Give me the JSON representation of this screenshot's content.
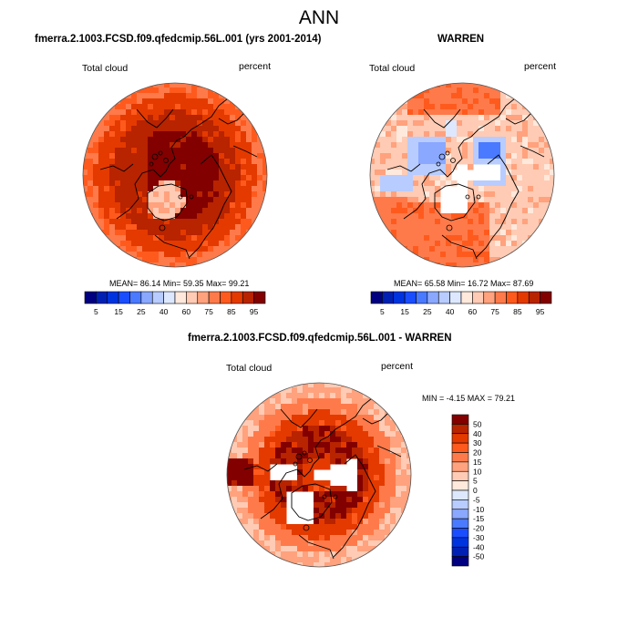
{
  "title": "ANN",
  "colors": {
    "abs_levels": [
      "#000080",
      "#0020b4",
      "#0033e0",
      "#1a4dff",
      "#4a7aff",
      "#8aa8ff",
      "#b8ccff",
      "#dde8ff",
      "#ffe9dc",
      "#ffcbb4",
      "#ffa27d",
      "#ff7a4a",
      "#ff5a1e",
      "#e43a00",
      "#b82300",
      "#820000"
    ],
    "diff_levels": [
      "#820000",
      "#b82300",
      "#e43a00",
      "#ff5a1e",
      "#ff7a4a",
      "#ffa27d",
      "#ffcbb4",
      "#ffe9dc",
      "#dde8ff",
      "#b8ccff",
      "#8aa8ff",
      "#4a7aff",
      "#1a4dff",
      "#0033e0",
      "#0020b4",
      "#000080"
    ],
    "missing": "#ffffff",
    "coast": "#000000"
  },
  "panels": [
    {
      "id": "model",
      "title": "fmerra.2.1003.FCSD.f09.qfedcmip.56L.001 (yrs 2001-2014)",
      "variable": "Total cloud",
      "units": "percent",
      "stats": "MEAN=  86.14  Min=  59.35  Max=  99.21",
      "mean": 86.14,
      "min": 59.35,
      "max": 99.21
    },
    {
      "id": "obs",
      "title": "WARREN",
      "variable": "Total cloud",
      "units": "percent",
      "stats": "MEAN=  65.58  Min=  16.72  Max=  87.69",
      "mean": 65.58,
      "min": 16.72,
      "max": 87.69
    },
    {
      "id": "diff",
      "title": "fmerra.2.1003.FCSD.f09.qfedcmip.56L.001 - WARREN",
      "variable": "Total cloud",
      "units": "percent",
      "stats": "MIN =  -4.15 MAX =  79.21",
      "min": -4.15,
      "max": 79.21
    }
  ],
  "chart_data": [
    {
      "type": "heatmap",
      "title": "fmerra.2.1003.FCSD.f09.qfedcmip.56L.001 (yrs 2001-2014)",
      "projection": "north polar stereographic",
      "variable": "Total cloud",
      "units": "percent",
      "mean": 86.14,
      "min": 59.35,
      "max": 99.21,
      "colorbar": {
        "orientation": "horizontal",
        "levels": [
          5,
          10,
          15,
          20,
          25,
          30,
          40,
          50,
          60,
          70,
          75,
          80,
          85,
          90,
          95
        ],
        "tick_labels": [
          "5",
          "15",
          "25",
          "40",
          "60",
          "75",
          "85",
          "95"
        ]
      }
    },
    {
      "type": "heatmap",
      "title": "WARREN",
      "projection": "north polar stereographic",
      "variable": "Total cloud",
      "units": "percent",
      "mean": 65.58,
      "min": 16.72,
      "max": 87.69,
      "colorbar": {
        "orientation": "horizontal",
        "levels": [
          5,
          10,
          15,
          20,
          25,
          30,
          40,
          50,
          60,
          70,
          75,
          80,
          85,
          90,
          95
        ],
        "tick_labels": [
          "5",
          "15",
          "25",
          "40",
          "60",
          "75",
          "85",
          "95"
        ]
      }
    },
    {
      "type": "heatmap",
      "title": "fmerra.2.1003.FCSD.f09.qfedcmip.56L.001 - WARREN",
      "projection": "north polar stereographic",
      "variable": "Total cloud",
      "units": "percent",
      "min": -4.15,
      "max": 79.21,
      "colorbar": {
        "orientation": "vertical",
        "levels": [
          50,
          40,
          30,
          20,
          15,
          10,
          5,
          0,
          -5,
          -10,
          -15,
          -20,
          -30,
          -40,
          -50
        ],
        "tick_labels": [
          "50",
          "40",
          "30",
          "20",
          "15",
          "10",
          "5",
          "0",
          "-5",
          "-10",
          "-15",
          "-20",
          "-30",
          "-40",
          "-50"
        ]
      }
    }
  ]
}
